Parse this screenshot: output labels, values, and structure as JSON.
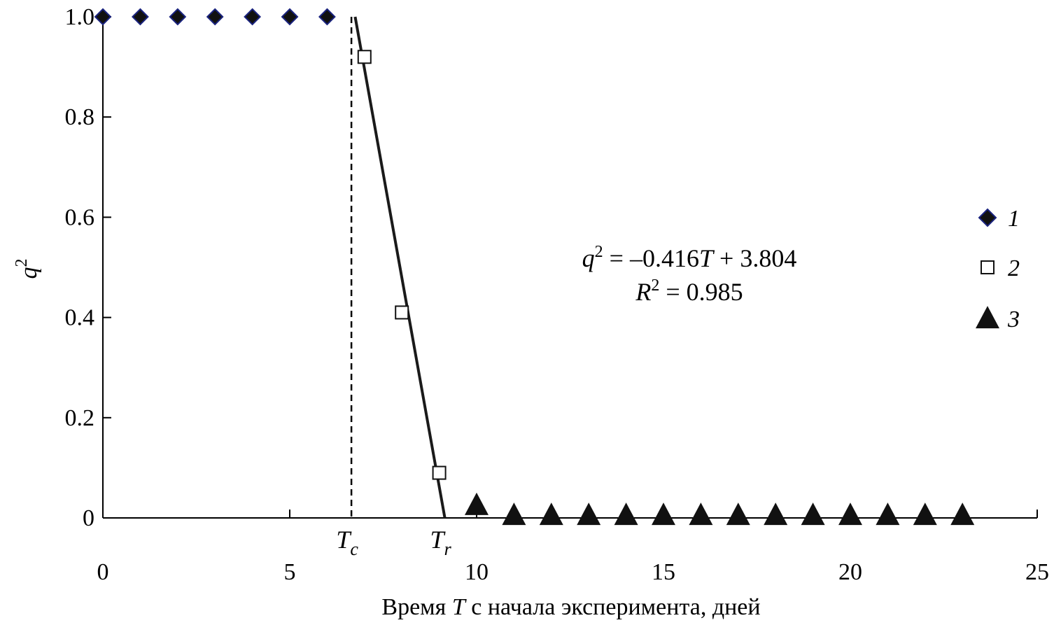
{
  "chart_data": {
    "type": "scatter",
    "xlabel": {
      "before": "Время ",
      "var": "T",
      "after": " с начала эксперимента, дней"
    },
    "ylabel": {
      "var": "q",
      "sup": "2"
    },
    "xlim": [
      0,
      25
    ],
    "ylim": [
      0,
      1.0
    ],
    "x_ticks": [
      {
        "value": 0,
        "label": "0"
      },
      {
        "value": 5,
        "label": "5"
      },
      {
        "value": 10,
        "label": "10"
      },
      {
        "value": 15,
        "label": "15"
      },
      {
        "value": 20,
        "label": "20"
      },
      {
        "value": 25,
        "label": "25"
      }
    ],
    "y_ticks": [
      {
        "value": 0,
        "label": "0"
      },
      {
        "value": 0.2,
        "label": "0.2"
      },
      {
        "value": 0.4,
        "label": "0.4"
      },
      {
        "value": 0.6,
        "label": "0.6"
      },
      {
        "value": 0.8,
        "label": "0.8"
      },
      {
        "value": 1.0,
        "label": "1.0"
      }
    ],
    "grid": false,
    "legend_position": "right",
    "series": [
      {
        "name": "1",
        "marker": "diamond",
        "color": "#111111",
        "edge_color": "#1a237e",
        "x": [
          0,
          1,
          2,
          3,
          4,
          5,
          6
        ],
        "y": [
          1.0,
          1.0,
          1.0,
          1.0,
          1.0,
          1.0,
          1.0
        ]
      },
      {
        "name": "2",
        "marker": "open-square",
        "color": "#111111",
        "x": [
          7,
          8,
          9
        ],
        "y": [
          0.92,
          0.41,
          0.09
        ]
      },
      {
        "name": "3",
        "marker": "triangle",
        "color": "#111111",
        "x": [
          10,
          11,
          12,
          13,
          14,
          15,
          16,
          17,
          18,
          19,
          20,
          21,
          22,
          23
        ],
        "y": [
          0.02,
          0,
          0,
          0,
          0,
          0,
          0,
          0,
          0,
          0,
          0,
          0,
          0,
          0
        ]
      }
    ],
    "fit_line": {
      "x": [
        6.75,
        9.15
      ],
      "y": [
        1.0,
        0.0
      ]
    },
    "tc_line": {
      "x": 6.65
    },
    "markers": [
      {
        "var": "T",
        "sub": "c",
        "x": 6.65
      },
      {
        "var": "T",
        "sub": "r",
        "x": 9.15
      }
    ],
    "annotation": {
      "line1": {
        "var": "q",
        "sup": "2",
        "rest": " = –0.416",
        "var2": "T",
        "rest2": " + 3.804"
      },
      "line2": {
        "var": "R",
        "sup": "2",
        "rest": " = 0.985"
      }
    }
  }
}
